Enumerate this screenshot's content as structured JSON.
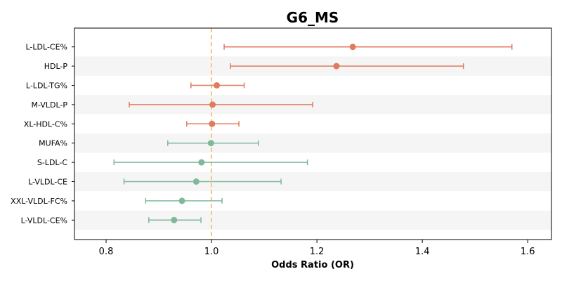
{
  "chart_data": {
    "type": "forest",
    "title": "G6_MS",
    "xlabel": "Odds Ratio (OR)",
    "xlim": [
      0.74,
      1.645
    ],
    "xticks": [
      0.8,
      1.0,
      1.2,
      1.4,
      1.6
    ],
    "xtick_labels": [
      "0.8",
      "1.0",
      "1.2",
      "1.4",
      "1.6"
    ],
    "reference_line": 1.0,
    "colors": {
      "positive": "#e07b5f",
      "negative": "#7fb89b",
      "reference": "#f5c07a",
      "band": "#f5f5f5"
    },
    "rows": [
      {
        "label": "L-LDL-CE%",
        "or": 1.268,
        "lo": 1.024,
        "hi": 1.57,
        "group": "positive"
      },
      {
        "label": "HDL-P",
        "or": 1.237,
        "lo": 1.036,
        "hi": 1.478,
        "group": "positive"
      },
      {
        "label": "L-LDL-TG%",
        "or": 1.01,
        "lo": 0.961,
        "hi": 1.062,
        "group": "positive"
      },
      {
        "label": "M-VLDL-P",
        "or": 1.002,
        "lo": 0.844,
        "hi": 1.192,
        "group": "positive"
      },
      {
        "label": "XL-HDL-C%",
        "or": 1.001,
        "lo": 0.953,
        "hi": 1.052,
        "group": "positive"
      },
      {
        "label": "MUFA%",
        "or": 0.999,
        "lo": 0.917,
        "hi": 1.089,
        "group": "negative"
      },
      {
        "label": "S-LDL-C",
        "or": 0.981,
        "lo": 0.815,
        "hi": 1.182,
        "group": "negative"
      },
      {
        "label": "L-VLDL-CE",
        "or": 0.971,
        "lo": 0.834,
        "hi": 1.132,
        "group": "negative"
      },
      {
        "label": "XXL-VLDL-FC%",
        "or": 0.944,
        "lo": 0.875,
        "hi": 1.02,
        "group": "negative"
      },
      {
        "label": "L-VLDL-CE%",
        "or": 0.929,
        "lo": 0.881,
        "hi": 0.98,
        "group": "negative"
      }
    ]
  }
}
